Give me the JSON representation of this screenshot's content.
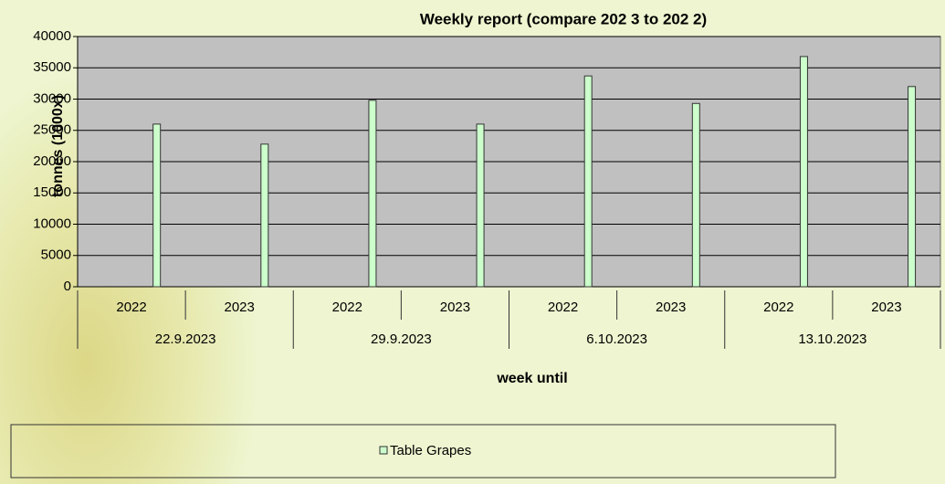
{
  "chart_data": {
    "type": "bar",
    "title": "Weekly report (compare 202 3 to 202 2)",
    "y_label": "tonnes (1000x)",
    "x_label": "week until",
    "categories": [
      "2022",
      "2023",
      "2022",
      "2023",
      "2022",
      "2023",
      "2022",
      "2023"
    ],
    "groups": [
      "22.9.2023",
      "29.9.2023",
      "6.10.2023",
      "13.10.2023"
    ],
    "series": [
      {
        "name": "Table Grapes",
        "color": "#ccffcc",
        "values": [
          26000,
          22800,
          29800,
          26000,
          33700,
          29300,
          36800,
          32000
        ]
      }
    ],
    "ylim": [
      0,
      40000
    ],
    "yticks": [
      0,
      5000,
      10000,
      15000,
      20000,
      25000,
      30000,
      35000,
      40000
    ],
    "grid": true
  }
}
